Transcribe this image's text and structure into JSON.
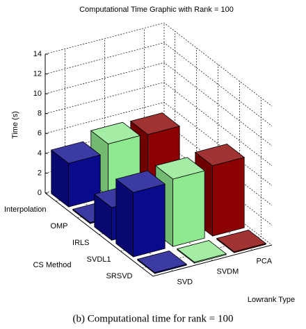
{
  "chart_data": {
    "type": "bar3d",
    "title": "Computational Time Graphic with  Rank = 100",
    "xlabel": "CS Method",
    "ylabel": "Lowrank Type",
    "zlabel": "Time (s)",
    "categories": [
      "Interpolation",
      "OMP",
      "IRLS",
      "SVDL1",
      "SRSVD"
    ],
    "series": [
      {
        "name": "SVD",
        "color": "#0a0a8c",
        "values": [
          4.4,
          0.1,
          3.3,
          6.5,
          0.1
        ]
      },
      {
        "name": "SVDM",
        "color": "#8ee88e",
        "values": [
          5.3,
          0.1,
          3.3,
          6.8,
          0.1
        ]
      },
      {
        "name": "PCA",
        "color": "#8b0000",
        "values": [
          5.2,
          0.1,
          3.3,
          7.1,
          0.1
        ]
      }
    ],
    "zlim": [
      0,
      14
    ],
    "zticks": [
      0,
      2,
      4,
      6,
      8,
      10,
      12,
      14
    ],
    "grid": true
  },
  "caption": "(b) Computational time for rank = 100"
}
